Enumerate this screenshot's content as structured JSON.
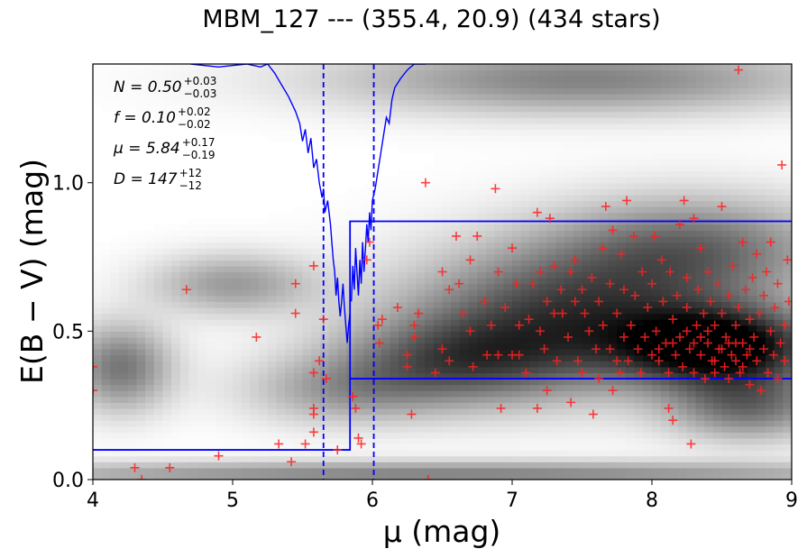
{
  "chart_data": {
    "type": "scatter",
    "title": "MBM_127 --- (355.4, 20.9) (434 stars)",
    "xlabel": "μ (mag)",
    "ylabel": "E(B − V) (mag)",
    "xlim": [
      4,
      9
    ],
    "ylim": [
      0,
      1.4
    ],
    "xticks": [
      "4",
      "5",
      "6",
      "7",
      "8",
      "9"
    ],
    "yticks": [
      "0.0",
      "0.5",
      "1.0"
    ],
    "annotations": [
      {
        "label": "N = 0.50",
        "sup": "+0.03",
        "sub": "−0.03"
      },
      {
        "label": "f = 0.10",
        "sup": "+0.02",
        "sub": "−0.02"
      },
      {
        "label": "μ = 5.84",
        "sup": "+0.17",
        "sub": "−0.19"
      },
      {
        "label": "D = 147",
        "sup": "+12",
        "sub": "−12"
      }
    ],
    "model_step": {
      "mu": 5.84,
      "ebv_before": 0.1,
      "ebv_after": 0.34,
      "ebv_upper": 0.87,
      "color": "#0000ff"
    },
    "mu_interval": [
      5.65,
      6.01
    ],
    "heatmap_blobs": [
      {
        "mu": 8.5,
        "ebv": 0.45,
        "smu": 0.5,
        "sebv": 0.09,
        "w": 1.0
      },
      {
        "mu": 7.4,
        "ebv": 0.55,
        "smu": 0.8,
        "sebv": 0.16,
        "w": 0.7
      },
      {
        "mu": 8.3,
        "ebv": 0.78,
        "smu": 0.7,
        "sebv": 0.12,
        "w": 0.5
      },
      {
        "mu": 6.6,
        "ebv": 0.4,
        "smu": 0.6,
        "sebv": 0.1,
        "w": 0.5
      },
      {
        "mu": 7.5,
        "ebv": 1.35,
        "smu": 1.2,
        "sebv": 0.08,
        "w": 0.45
      },
      {
        "mu": 5.0,
        "ebv": 0.66,
        "smu": 0.4,
        "sebv": 0.07,
        "w": 0.35
      },
      {
        "mu": 5.8,
        "ebv": 0.3,
        "smu": 0.5,
        "sebv": 0.08,
        "w": 0.3
      },
      {
        "mu": 4.2,
        "ebv": 0.38,
        "smu": 0.25,
        "sebv": 0.1,
        "w": 0.5
      },
      {
        "mu": 6.5,
        "ebv": 0.02,
        "smu": 2.5,
        "sebv": 0.03,
        "w": 0.45
      },
      {
        "mu": 8.7,
        "ebv": 0.25,
        "smu": 0.4,
        "sebv": 0.08,
        "w": 0.5
      }
    ],
    "stars": [
      [
        4.0,
        0.38
      ],
      [
        4.0,
        0.3
      ],
      [
        4.3,
        0.04
      ],
      [
        4.35,
        0.0
      ],
      [
        4.55,
        0.04
      ],
      [
        4.67,
        0.64
      ],
      [
        4.9,
        0.08
      ],
      [
        5.17,
        0.48
      ],
      [
        5.33,
        0.12
      ],
      [
        5.42,
        0.06
      ],
      [
        5.45,
        0.66
      ],
      [
        5.45,
        0.56
      ],
      [
        5.52,
        0.12
      ],
      [
        5.58,
        0.72
      ],
      [
        5.58,
        0.36
      ],
      [
        5.58,
        0.24
      ],
      [
        5.58,
        0.22
      ],
      [
        5.58,
        0.16
      ],
      [
        5.62,
        0.4
      ],
      [
        5.65,
        0.54
      ],
      [
        5.67,
        0.34
      ],
      [
        5.75,
        0.1
      ],
      [
        5.86,
        0.28
      ],
      [
        5.88,
        0.24
      ],
      [
        5.9,
        0.14
      ],
      [
        5.92,
        0.12
      ],
      [
        5.96,
        0.74
      ],
      [
        5.98,
        0.8
      ],
      [
        6.04,
        0.52
      ],
      [
        6.05,
        0.46
      ],
      [
        6.07,
        0.54
      ],
      [
        6.18,
        0.58
      ],
      [
        6.25,
        0.42
      ],
      [
        6.25,
        0.38
      ],
      [
        6.28,
        0.22
      ],
      [
        6.3,
        0.48
      ],
      [
        6.3,
        0.52
      ],
      [
        6.33,
        0.56
      ],
      [
        6.38,
        1.0
      ],
      [
        6.4,
        0.0
      ],
      [
        6.45,
        0.36
      ],
      [
        6.5,
        0.44
      ],
      [
        6.5,
        0.7
      ],
      [
        6.55,
        0.4
      ],
      [
        6.55,
        0.64
      ],
      [
        6.6,
        0.82
      ],
      [
        6.62,
        0.66
      ],
      [
        6.65,
        0.56
      ],
      [
        6.7,
        0.74
      ],
      [
        6.7,
        0.5
      ],
      [
        6.72,
        0.38
      ],
      [
        6.75,
        0.82
      ],
      [
        6.8,
        0.6
      ],
      [
        6.82,
        0.42
      ],
      [
        6.85,
        0.52
      ],
      [
        6.88,
        0.98
      ],
      [
        6.9,
        0.42
      ],
      [
        6.9,
        0.7
      ],
      [
        6.92,
        0.24
      ],
      [
        6.95,
        0.58
      ],
      [
        7.0,
        0.42
      ],
      [
        7.0,
        0.78
      ],
      [
        7.03,
        0.66
      ],
      [
        7.05,
        0.52
      ],
      [
        7.05,
        0.42
      ],
      [
        7.1,
        0.36
      ],
      [
        7.12,
        0.54
      ],
      [
        7.15,
        0.66
      ],
      [
        7.18,
        0.9
      ],
      [
        7.18,
        0.24
      ],
      [
        7.2,
        0.7
      ],
      [
        7.2,
        0.5
      ],
      [
        7.23,
        0.44
      ],
      [
        7.25,
        0.6
      ],
      [
        7.25,
        0.3
      ],
      [
        7.27,
        0.88
      ],
      [
        7.3,
        0.56
      ],
      [
        7.3,
        0.72
      ],
      [
        7.32,
        0.4
      ],
      [
        7.35,
        0.64
      ],
      [
        7.36,
        0.56
      ],
      [
        7.4,
        0.48
      ],
      [
        7.42,
        0.7
      ],
      [
        7.42,
        0.26
      ],
      [
        7.45,
        0.74
      ],
      [
        7.45,
        0.6
      ],
      [
        7.47,
        0.4
      ],
      [
        7.5,
        0.64
      ],
      [
        7.5,
        0.36
      ],
      [
        7.52,
        0.56
      ],
      [
        7.55,
        0.5
      ],
      [
        7.57,
        0.68
      ],
      [
        7.58,
        0.22
      ],
      [
        7.6,
        0.44
      ],
      [
        7.62,
        0.6
      ],
      [
        7.62,
        0.34
      ],
      [
        7.65,
        0.78
      ],
      [
        7.65,
        0.52
      ],
      [
        7.67,
        0.92
      ],
      [
        7.7,
        0.66
      ],
      [
        7.7,
        0.44
      ],
      [
        7.72,
        0.3
      ],
      [
        7.72,
        0.84
      ],
      [
        7.75,
        0.56
      ],
      [
        7.75,
        0.4
      ],
      [
        7.77,
        0.36
      ],
      [
        7.78,
        0.76
      ],
      [
        7.8,
        0.64
      ],
      [
        7.8,
        0.48
      ],
      [
        7.82,
        0.94
      ],
      [
        7.83,
        0.4
      ],
      [
        7.85,
        0.52
      ],
      [
        7.87,
        0.82
      ],
      [
        7.88,
        0.62
      ],
      [
        7.9,
        0.44
      ],
      [
        7.92,
        0.36
      ],
      [
        7.93,
        0.7
      ],
      [
        7.95,
        0.48
      ],
      [
        7.97,
        0.58
      ],
      [
        8.0,
        0.42
      ],
      [
        8.0,
        0.66
      ],
      [
        8.02,
        0.82
      ],
      [
        8.03,
        0.5
      ],
      [
        8.05,
        0.4
      ],
      [
        8.07,
        0.74
      ],
      [
        8.08,
        0.6
      ],
      [
        8.1,
        0.46
      ],
      [
        8.12,
        0.36
      ],
      [
        8.12,
        0.24
      ],
      [
        8.13,
        0.7
      ],
      [
        8.15,
        0.54
      ],
      [
        8.15,
        0.2
      ],
      [
        8.17,
        0.42
      ],
      [
        8.18,
        0.62
      ],
      [
        8.2,
        0.48
      ],
      [
        8.2,
        0.86
      ],
      [
        8.22,
        0.38
      ],
      [
        8.23,
        0.94
      ],
      [
        8.25,
        0.58
      ],
      [
        8.25,
        0.68
      ],
      [
        8.27,
        0.44
      ],
      [
        8.28,
        0.12
      ],
      [
        8.3,
        0.36
      ],
      [
        8.3,
        0.88
      ],
      [
        8.32,
        0.52
      ],
      [
        8.33,
        0.64
      ],
      [
        8.35,
        0.42
      ],
      [
        8.35,
        0.78
      ],
      [
        8.37,
        0.56
      ],
      [
        8.38,
        0.34
      ],
      [
        8.4,
        0.46
      ],
      [
        8.4,
        0.7
      ],
      [
        8.42,
        0.6
      ],
      [
        8.43,
        0.4
      ],
      [
        8.45,
        0.52
      ],
      [
        8.45,
        0.36
      ],
      [
        8.47,
        0.66
      ],
      [
        8.48,
        0.44
      ],
      [
        8.5,
        0.92
      ],
      [
        8.5,
        0.56
      ],
      [
        8.52,
        0.38
      ],
      [
        8.53,
        0.48
      ],
      [
        8.55,
        0.62
      ],
      [
        8.55,
        0.34
      ],
      [
        8.57,
        0.42
      ],
      [
        8.58,
        0.72
      ],
      [
        8.6,
        0.52
      ],
      [
        8.6,
        0.4
      ],
      [
        8.62,
        0.58
      ],
      [
        8.63,
        0.36
      ],
      [
        8.65,
        0.46
      ],
      [
        8.65,
        0.8
      ],
      [
        8.67,
        0.64
      ],
      [
        8.68,
        0.42
      ],
      [
        8.7,
        0.54
      ],
      [
        8.7,
        0.32
      ],
      [
        8.72,
        0.68
      ],
      [
        8.73,
        0.48
      ],
      [
        8.75,
        0.4
      ],
      [
        8.75,
        0.76
      ],
      [
        8.77,
        0.56
      ],
      [
        8.78,
        0.3
      ],
      [
        8.8,
        0.62
      ],
      [
        8.8,
        0.44
      ],
      [
        8.82,
        0.7
      ],
      [
        8.83,
        0.36
      ],
      [
        8.85,
        0.5
      ],
      [
        8.85,
        0.8
      ],
      [
        8.87,
        0.42
      ],
      [
        8.88,
        0.58
      ],
      [
        8.9,
        0.34
      ],
      [
        8.9,
        0.66
      ],
      [
        8.92,
        0.46
      ],
      [
        8.93,
        1.06
      ],
      [
        8.95,
        0.52
      ],
      [
        8.95,
        0.4
      ],
      [
        8.97,
        0.74
      ],
      [
        8.98,
        0.6
      ],
      [
        8.62,
        1.38
      ],
      [
        8.4,
        0.5
      ],
      [
        8.3,
        0.46
      ],
      [
        8.5,
        0.44
      ],
      [
        8.6,
        0.46
      ],
      [
        8.7,
        0.44
      ],
      [
        8.45,
        0.4
      ],
      [
        8.55,
        0.46
      ],
      [
        8.65,
        0.38
      ],
      [
        8.35,
        0.48
      ],
      [
        8.25,
        0.5
      ],
      [
        8.15,
        0.46
      ],
      [
        8.05,
        0.44
      ]
    ],
    "curve_segments": [
      [
        [
          4.7,
          1.4
        ],
        [
          4.9,
          1.39
        ],
        [
          5.1,
          1.4
        ],
        [
          5.2,
          1.39
        ],
        [
          5.25,
          1.4
        ]
      ],
      [
        [
          5.25,
          1.4
        ],
        [
          5.3,
          1.37
        ],
        [
          5.35,
          1.33
        ],
        [
          5.4,
          1.29
        ],
        [
          5.45,
          1.24
        ],
        [
          5.48,
          1.2
        ],
        [
          5.5,
          1.14
        ],
        [
          5.52,
          1.18
        ],
        [
          5.54,
          1.1
        ],
        [
          5.56,
          1.15
        ],
        [
          5.58,
          1.05
        ],
        [
          5.6,
          1.08
        ],
        [
          5.62,
          1.0
        ],
        [
          5.64,
          0.95
        ],
        [
          5.65,
          0.98
        ],
        [
          5.66,
          0.9
        ],
        [
          5.68,
          0.94
        ],
        [
          5.7,
          0.86
        ],
        [
          5.71,
          0.8
        ],
        [
          5.72,
          0.74
        ],
        [
          5.73,
          0.7
        ],
        [
          5.74,
          0.62
        ],
        [
          5.75,
          0.68
        ],
        [
          5.76,
          0.6
        ],
        [
          5.77,
          0.55
        ],
        [
          5.78,
          0.6
        ],
        [
          5.79,
          0.66
        ],
        [
          5.8,
          0.58
        ],
        [
          5.81,
          0.52
        ],
        [
          5.82,
          0.46
        ],
        [
          5.83,
          0.52
        ],
        [
          5.84,
          0.56
        ]
      ],
      [
        [
          5.85,
          0.6
        ],
        [
          5.86,
          0.72
        ],
        [
          5.87,
          0.64
        ],
        [
          5.88,
          0.78
        ],
        [
          5.89,
          0.7
        ],
        [
          5.9,
          0.62
        ],
        [
          5.91,
          0.74
        ],
        [
          5.92,
          0.66
        ],
        [
          5.93,
          0.8
        ],
        [
          5.94,
          0.7
        ],
        [
          5.95,
          0.78
        ],
        [
          5.96,
          0.86
        ],
        [
          5.97,
          0.8
        ],
        [
          5.98,
          0.9
        ],
        [
          5.99,
          0.84
        ],
        [
          6.0,
          0.94
        ],
        [
          6.02,
          0.98
        ],
        [
          6.04,
          1.04
        ],
        [
          6.06,
          1.1
        ],
        [
          6.08,
          1.16
        ],
        [
          6.1,
          1.22
        ],
        [
          6.12,
          1.2
        ],
        [
          6.14,
          1.28
        ],
        [
          6.16,
          1.32
        ],
        [
          6.2,
          1.35
        ],
        [
          6.25,
          1.38
        ],
        [
          6.3,
          1.4
        ],
        [
          6.38,
          1.4
        ]
      ]
    ]
  }
}
